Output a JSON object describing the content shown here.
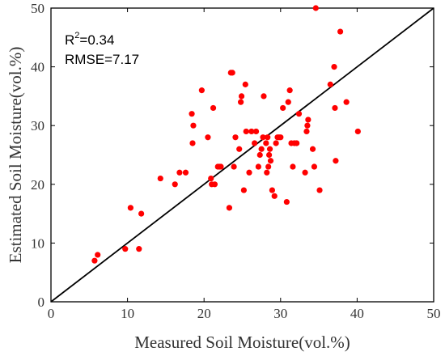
{
  "chart_data": {
    "type": "scatter",
    "xlabel": "Measured Soil Moisture(vol.%)",
    "ylabel": "Estimated Soil Moisture(vol.%)",
    "xlim": [
      0,
      50
    ],
    "ylim": [
      0,
      50
    ],
    "xticks": [
      0,
      10,
      20,
      30,
      40,
      50
    ],
    "yticks": [
      0,
      10,
      20,
      30,
      40,
      50
    ],
    "grid": false,
    "reference_line": {
      "type": "1:1",
      "from": [
        0,
        0
      ],
      "to": [
        50,
        50
      ]
    },
    "annotations": {
      "r2_prefix": "R",
      "r2_sup": "2",
      "r2_value": "=0.34",
      "rmse": "RMSE=7.17"
    },
    "marker_color": "#ff0000",
    "line_color": "#000000",
    "points": [
      [
        5.7,
        7
      ],
      [
        6.1,
        8
      ],
      [
        9.7,
        9
      ],
      [
        10.4,
        16
      ],
      [
        11.5,
        9
      ],
      [
        11.8,
        15
      ],
      [
        14.3,
        21
      ],
      [
        16.2,
        20
      ],
      [
        16.8,
        22
      ],
      [
        17.6,
        22
      ],
      [
        18.4,
        32
      ],
      [
        18.5,
        27
      ],
      [
        18.6,
        30
      ],
      [
        19.7,
        36
      ],
      [
        20.5,
        28
      ],
      [
        20.9,
        21
      ],
      [
        21.0,
        20
      ],
      [
        21.2,
        33
      ],
      [
        21.4,
        20
      ],
      [
        21.8,
        23
      ],
      [
        22.0,
        23
      ],
      [
        22.2,
        23
      ],
      [
        23.3,
        16
      ],
      [
        23.5,
        39
      ],
      [
        23.7,
        39
      ],
      [
        23.9,
        23
      ],
      [
        24.1,
        28
      ],
      [
        24.6,
        26
      ],
      [
        24.8,
        34
      ],
      [
        24.9,
        35
      ],
      [
        25.2,
        19
      ],
      [
        25.4,
        37
      ],
      [
        25.5,
        29
      ],
      [
        25.9,
        22
      ],
      [
        26.2,
        29
      ],
      [
        26.6,
        27
      ],
      [
        26.8,
        29
      ],
      [
        27.1,
        23
      ],
      [
        27.3,
        25
      ],
      [
        27.5,
        26
      ],
      [
        27.7,
        28
      ],
      [
        27.8,
        35
      ],
      [
        28.1,
        27
      ],
      [
        28.2,
        22
      ],
      [
        28.3,
        28
      ],
      [
        28.4,
        23
      ],
      [
        28.5,
        25
      ],
      [
        28.6,
        26
      ],
      [
        28.7,
        24
      ],
      [
        28.9,
        19
      ],
      [
        29.2,
        18
      ],
      [
        29.4,
        27
      ],
      [
        29.6,
        28
      ],
      [
        29.8,
        28
      ],
      [
        30.0,
        28
      ],
      [
        30.3,
        33
      ],
      [
        30.8,
        17
      ],
      [
        31.0,
        34
      ],
      [
        31.2,
        36
      ],
      [
        31.4,
        27
      ],
      [
        31.6,
        23
      ],
      [
        31.8,
        27
      ],
      [
        32.1,
        27
      ],
      [
        32.4,
        32
      ],
      [
        33.2,
        22
      ],
      [
        33.4,
        29
      ],
      [
        33.5,
        30
      ],
      [
        33.6,
        31
      ],
      [
        34.2,
        26
      ],
      [
        34.4,
        23
      ],
      [
        34.6,
        50
      ],
      [
        35.1,
        19
      ],
      [
        36.5,
        37
      ],
      [
        37.0,
        40
      ],
      [
        37.1,
        33
      ],
      [
        37.2,
        24
      ],
      [
        37.8,
        46
      ],
      [
        38.6,
        34
      ],
      [
        40.1,
        29
      ]
    ]
  }
}
